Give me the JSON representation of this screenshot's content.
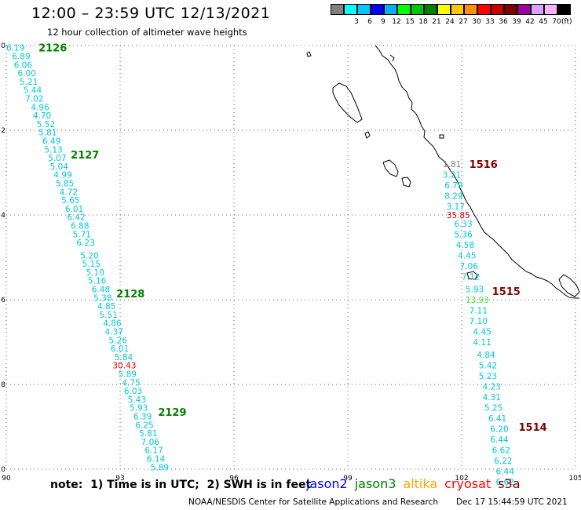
{
  "header": {
    "title": "12:00 – 23:59 UTC 12/13/2021",
    "subtitle": "12 hour collection of altimeter wave heights"
  },
  "colorbar": {
    "unit": "(ft)",
    "swatches": [
      {
        "color": "#808080",
        "label": ""
      },
      {
        "color": "#00ffff",
        "label": "3"
      },
      {
        "color": "#00c8ff",
        "label": "6"
      },
      {
        "color": "#0000ff",
        "label": "9"
      },
      {
        "color": "#00b0ff",
        "label": "12"
      },
      {
        "color": "#00ff00",
        "label": "15"
      },
      {
        "color": "#00c800",
        "label": "18"
      },
      {
        "color": "#008000",
        "label": "21"
      },
      {
        "color": "#ffff00",
        "label": "24"
      },
      {
        "color": "#ffc800",
        "label": "27"
      },
      {
        "color": "#ff9000",
        "label": "30"
      },
      {
        "color": "#ff0000",
        "label": "33"
      },
      {
        "color": "#c80000",
        "label": "36"
      },
      {
        "color": "#800000",
        "label": "39"
      },
      {
        "color": "#a000a0",
        "label": "42"
      },
      {
        "color": "#d8a0ff",
        "label": "45"
      },
      {
        "color": "#ffb0ff",
        "label": "70"
      },
      {
        "color": "#000000",
        "label": ""
      }
    ]
  },
  "map": {
    "lon_range": [
      90,
      105
    ],
    "lat_range": [
      -10,
      0
    ],
    "x_ticks": [
      {
        "value": 90,
        "label": "90"
      },
      {
        "value": 93,
        "label": "93"
      },
      {
        "value": 96,
        "label": "96"
      },
      {
        "value": 99,
        "label": "99"
      },
      {
        "value": 102,
        "label": "102"
      },
      {
        "value": 105,
        "label": "105"
      }
    ],
    "y_ticks": [
      {
        "value": 0,
        "label": "0"
      },
      {
        "value": -2,
        "label": "−2"
      },
      {
        "value": -4,
        "label": "−4"
      },
      {
        "value": -6,
        "label": "−6"
      },
      {
        "value": -8,
        "label": "−8"
      },
      {
        "value": -10,
        "label": "−10"
      }
    ],
    "grid": "dotted",
    "coastline_color": "#000000"
  },
  "passes": [
    {
      "id": "2126",
      "color": "#008000",
      "lon": 90.85,
      "lat": -0.05
    },
    {
      "id": "2127",
      "color": "#008000",
      "lon": 91.7,
      "lat": -2.57
    },
    {
      "id": "2128",
      "color": "#008000",
      "lon": 92.9,
      "lat": -5.85
    },
    {
      "id": "2129",
      "color": "#008000",
      "lon": 94.0,
      "lat": -8.65
    },
    {
      "id": "1516",
      "color": "#800000",
      "lon": 102.2,
      "lat": -2.8
    },
    {
      "id": "1515",
      "color": "#800000",
      "lon": 102.8,
      "lat": -5.8
    },
    {
      "id": "1514",
      "color": "#800000",
      "lon": 103.5,
      "lat": -9.0
    }
  ],
  "tracks": [
    {
      "satellite": "jason3",
      "default_color": "#00c8d8",
      "points": [
        {
          "lon": 90.0,
          "lat": -0.05,
          "swh": "6.19"
        },
        {
          "lon": 90.15,
          "lat": -0.25,
          "swh": "6.89"
        },
        {
          "lon": 90.2,
          "lat": -0.45,
          "swh": "6.06"
        },
        {
          "lon": 90.3,
          "lat": -0.65,
          "swh": "6.00"
        },
        {
          "lon": 90.35,
          "lat": -0.85,
          "swh": "5.21"
        },
        {
          "lon": 90.45,
          "lat": -1.05,
          "swh": "5.44"
        },
        {
          "lon": 90.5,
          "lat": -1.25,
          "swh": "7.02"
        },
        {
          "lon": 90.65,
          "lat": -1.45,
          "swh": "4.96"
        },
        {
          "lon": 90.7,
          "lat": -1.65,
          "swh": "4.70"
        },
        {
          "lon": 90.8,
          "lat": -1.85,
          "swh": "5.52"
        },
        {
          "lon": 90.85,
          "lat": -2.05,
          "swh": "5.81"
        },
        {
          "lon": 90.95,
          "lat": -2.25,
          "swh": "6.49"
        },
        {
          "lon": 91.0,
          "lat": -2.45,
          "swh": "5.13"
        },
        {
          "lon": 91.1,
          "lat": -2.65,
          "swh": "5.07"
        },
        {
          "lon": 91.15,
          "lat": -2.85,
          "swh": "5.04"
        },
        {
          "lon": 91.25,
          "lat": -3.05,
          "swh": "4.99"
        },
        {
          "lon": 91.3,
          "lat": -3.25,
          "swh": "5.85"
        },
        {
          "lon": 91.4,
          "lat": -3.45,
          "swh": "4.72"
        },
        {
          "lon": 91.45,
          "lat": -3.65,
          "swh": "5.65"
        },
        {
          "lon": 91.55,
          "lat": -3.85,
          "swh": "6.01"
        },
        {
          "lon": 91.6,
          "lat": -4.05,
          "swh": "6.42"
        },
        {
          "lon": 91.7,
          "lat": -4.25,
          "swh": "6.88"
        },
        {
          "lon": 91.75,
          "lat": -4.45,
          "swh": "5.71"
        },
        {
          "lon": 91.85,
          "lat": -4.65,
          "swh": "6.23"
        },
        {
          "lon": 91.95,
          "lat": -4.95,
          "swh": "5.20"
        },
        {
          "lon": 92.0,
          "lat": -5.15,
          "swh": "5.15"
        },
        {
          "lon": 92.1,
          "lat": -5.35,
          "swh": "5.10"
        },
        {
          "lon": 92.15,
          "lat": -5.55,
          "swh": "5.16"
        },
        {
          "lon": 92.25,
          "lat": -5.75,
          "swh": "6.48"
        },
        {
          "lon": 92.3,
          "lat": -5.95,
          "swh": "5.38"
        },
        {
          "lon": 92.4,
          "lat": -6.15,
          "swh": "4.85"
        },
        {
          "lon": 92.45,
          "lat": -6.35,
          "swh": "5.51"
        },
        {
          "lon": 92.55,
          "lat": -6.55,
          "swh": "4.86"
        },
        {
          "lon": 92.6,
          "lat": -6.75,
          "swh": "4.37"
        },
        {
          "lon": 92.7,
          "lat": -6.95,
          "swh": "5.26"
        },
        {
          "lon": 92.75,
          "lat": -7.15,
          "swh": "6.01"
        },
        {
          "lon": 92.85,
          "lat": -7.35,
          "swh": "5.84"
        },
        {
          "lon": 92.8,
          "lat": -7.55,
          "swh": "30.43",
          "color": "#e00000"
        },
        {
          "lon": 92.95,
          "lat": -7.75,
          "swh": "5.89"
        },
        {
          "lon": 93.05,
          "lat": -7.95,
          "swh": "4.75"
        },
        {
          "lon": 93.1,
          "lat": -8.15,
          "swh": "6.03"
        },
        {
          "lon": 93.2,
          "lat": -8.35,
          "swh": "5.43"
        },
        {
          "lon": 93.25,
          "lat": -8.55,
          "swh": "5.93"
        },
        {
          "lon": 93.35,
          "lat": -8.75,
          "swh": "6.39"
        },
        {
          "lon": 93.4,
          "lat": -8.95,
          "swh": "6.25"
        },
        {
          "lon": 93.5,
          "lat": -9.15,
          "swh": "5.81"
        },
        {
          "lon": 93.55,
          "lat": -9.35,
          "swh": "7.06"
        },
        {
          "lon": 93.65,
          "lat": -9.55,
          "swh": "6.17"
        },
        {
          "lon": 93.7,
          "lat": -9.75,
          "swh": "6.14"
        },
        {
          "lon": 93.8,
          "lat": -9.95,
          "swh": "5.89"
        }
      ]
    },
    {
      "satellite": "cryosat",
      "default_color": "#00c8d8",
      "points": [
        {
          "lon": 101.5,
          "lat": -2.8,
          "swh": "1.81",
          "color": "#808080"
        },
        {
          "lon": 101.5,
          "lat": -3.05,
          "swh": "3.21"
        },
        {
          "lon": 101.55,
          "lat": -3.3,
          "swh": "6.79"
        },
        {
          "lon": 101.55,
          "lat": -3.55,
          "swh": "8.29"
        },
        {
          "lon": 101.6,
          "lat": -3.8,
          "swh": "3.17"
        },
        {
          "lon": 101.6,
          "lat": -4.0,
          "swh": "35.85",
          "color": "#c00000"
        },
        {
          "lon": 101.8,
          "lat": -4.2,
          "swh": "6.33"
        },
        {
          "lon": 101.8,
          "lat": -4.45,
          "swh": "5.36"
        },
        {
          "lon": 101.85,
          "lat": -4.7,
          "swh": "4.58"
        },
        {
          "lon": 101.9,
          "lat": -4.95,
          "swh": "4.45"
        },
        {
          "lon": 101.95,
          "lat": -5.2,
          "swh": "7.06"
        },
        {
          "lon": 102.0,
          "lat": -5.45,
          "swh": "7.12"
        },
        {
          "lon": 102.1,
          "lat": -5.75,
          "swh": "5.93"
        },
        {
          "lon": 102.1,
          "lat": -6.0,
          "swh": "13.93",
          "color": "#40e040"
        },
        {
          "lon": 102.2,
          "lat": -6.25,
          "swh": "7.11"
        },
        {
          "lon": 102.2,
          "lat": -6.5,
          "swh": "7.10"
        },
        {
          "lon": 102.3,
          "lat": -6.75,
          "swh": "4.45"
        },
        {
          "lon": 102.3,
          "lat": -7.0,
          "swh": "4.11"
        },
        {
          "lon": 102.4,
          "lat": -7.3,
          "swh": "4.84"
        },
        {
          "lon": 102.45,
          "lat": -7.55,
          "swh": "5.42"
        },
        {
          "lon": 102.45,
          "lat": -7.8,
          "swh": "5.23"
        },
        {
          "lon": 102.55,
          "lat": -8.05,
          "swh": "4.23"
        },
        {
          "lon": 102.55,
          "lat": -8.3,
          "swh": "4.31"
        },
        {
          "lon": 102.6,
          "lat": -8.55,
          "swh": "5.25"
        },
        {
          "lon": 102.7,
          "lat": -8.8,
          "swh": "6.41"
        },
        {
          "lon": 102.75,
          "lat": -9.05,
          "swh": "6.20"
        },
        {
          "lon": 102.75,
          "lat": -9.3,
          "swh": "6.44"
        },
        {
          "lon": 102.8,
          "lat": -9.55,
          "swh": "6.62"
        },
        {
          "lon": 102.85,
          "lat": -9.8,
          "swh": "6.22"
        },
        {
          "lon": 102.9,
          "lat": -10.05,
          "swh": "6.44"
        },
        {
          "lon": 102.9,
          "lat": -10.3,
          "swh": "6.62"
        }
      ]
    }
  ],
  "footer": {
    "note": "note:  1) Time is in UTC;  2) SWH is in feet",
    "satellites": [
      {
        "name": "jason2",
        "color": "#0000ff"
      },
      {
        "name": "jason3",
        "color": "#008000"
      },
      {
        "name": "altika",
        "color": "#ffa500"
      },
      {
        "name": "cryosat",
        "color": "#ff0000"
      },
      {
        "name": "s3a",
        "color": "#800000"
      }
    ],
    "credit": "NOAA/NESDIS Center for Satellite Applications and Research",
    "timestamp": "Dec 17 15:44:59 UTC 2021"
  }
}
